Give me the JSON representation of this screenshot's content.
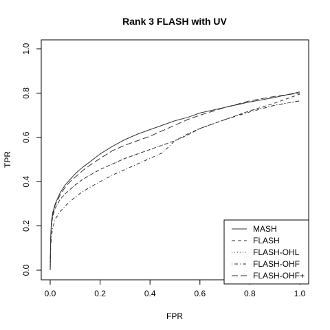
{
  "chart_data": {
    "type": "line",
    "title": "Rank 3 FLASH with UV",
    "xlabel": "FPR",
    "ylabel": "TPR",
    "xlim": [
      0,
      1
    ],
    "ylim": [
      0,
      1
    ],
    "xticks": [
      "0.0",
      "0.2",
      "0.4",
      "0.6",
      "0.8",
      "1.0"
    ],
    "yticks": [
      "0.0",
      "0.2",
      "0.4",
      "0.6",
      "0.8",
      "1.0"
    ],
    "grid": false,
    "legend_position": "bottom-right",
    "series": [
      {
        "name": "MASH",
        "style": "solid",
        "x": [
          0,
          0.002,
          0.005,
          0.01,
          0.02,
          0.04,
          0.06,
          0.08,
          0.1,
          0.13,
          0.16,
          0.2,
          0.25,
          0.3,
          0.35,
          0.4,
          0.45,
          0.5,
          0.55,
          0.6,
          0.7,
          0.8,
          0.9,
          1.0
        ],
        "y": [
          0,
          0.15,
          0.22,
          0.26,
          0.3,
          0.35,
          0.385,
          0.41,
          0.435,
          0.465,
          0.49,
          0.525,
          0.56,
          0.59,
          0.615,
          0.635,
          0.655,
          0.675,
          0.69,
          0.71,
          0.735,
          0.76,
          0.78,
          0.805
        ]
      },
      {
        "name": "FLASH",
        "style": "dashed",
        "x": [
          0,
          0.002,
          0.005,
          0.01,
          0.02,
          0.04,
          0.06,
          0.08,
          0.1,
          0.13,
          0.16,
          0.2,
          0.25,
          0.3,
          0.35,
          0.4,
          0.45,
          0.5,
          0.55,
          0.6,
          0.7,
          0.8,
          0.9,
          1.0
        ],
        "y": [
          0,
          0.13,
          0.2,
          0.24,
          0.28,
          0.32,
          0.345,
          0.365,
          0.385,
          0.41,
          0.43,
          0.455,
          0.48,
          0.505,
          0.525,
          0.545,
          0.565,
          0.585,
          0.61,
          0.64,
          0.68,
          0.72,
          0.755,
          0.795
        ]
      },
      {
        "name": "FLASH-OHL",
        "style": "dotted",
        "x": [
          0,
          0.002,
          0.005,
          0.01,
          0.02,
          0.04,
          0.06,
          0.08,
          0.1,
          0.13,
          0.16,
          0.2,
          0.25,
          0.3,
          0.35,
          0.4,
          0.45,
          0.5,
          0.55,
          0.6,
          0.7,
          0.8,
          0.9,
          1.0
        ],
        "y": [
          0,
          0.13,
          0.2,
          0.24,
          0.28,
          0.32,
          0.345,
          0.365,
          0.385,
          0.41,
          0.43,
          0.455,
          0.48,
          0.505,
          0.525,
          0.545,
          0.565,
          0.585,
          0.61,
          0.64,
          0.68,
          0.72,
          0.745,
          0.765
        ]
      },
      {
        "name": "FLASH-OHF",
        "style": "dotdash",
        "x": [
          0,
          0.002,
          0.005,
          0.01,
          0.02,
          0.04,
          0.06,
          0.08,
          0.1,
          0.13,
          0.16,
          0.2,
          0.25,
          0.3,
          0.35,
          0.4,
          0.45,
          0.5,
          0.55,
          0.6,
          0.7,
          0.8,
          0.9,
          1.0
        ],
        "y": [
          0,
          0.1,
          0.15,
          0.19,
          0.23,
          0.265,
          0.29,
          0.31,
          0.33,
          0.355,
          0.375,
          0.4,
          0.43,
          0.455,
          0.48,
          0.505,
          0.53,
          0.585,
          0.615,
          0.64,
          0.68,
          0.715,
          0.745,
          0.765
        ]
      },
      {
        "name": "FLASH-OHF+",
        "style": "longdash",
        "x": [
          0,
          0.002,
          0.005,
          0.01,
          0.02,
          0.04,
          0.06,
          0.08,
          0.1,
          0.13,
          0.16,
          0.2,
          0.25,
          0.3,
          0.35,
          0.4,
          0.45,
          0.5,
          0.55,
          0.6,
          0.7,
          0.8,
          0.9,
          1.0
        ],
        "y": [
          0,
          0.14,
          0.21,
          0.25,
          0.295,
          0.34,
          0.375,
          0.4,
          0.42,
          0.45,
          0.475,
          0.505,
          0.54,
          0.565,
          0.585,
          0.605,
          0.63,
          0.655,
          0.68,
          0.7,
          0.735,
          0.765,
          0.785,
          0.8
        ]
      }
    ]
  }
}
